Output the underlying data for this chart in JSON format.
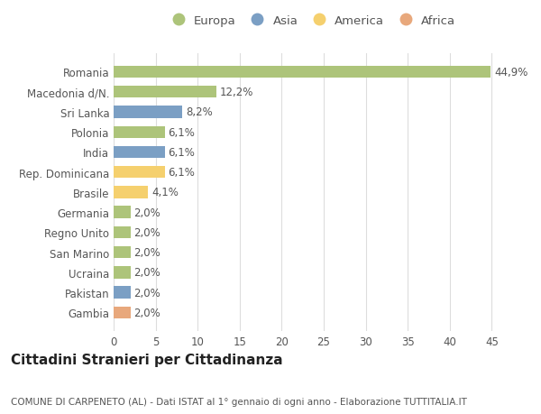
{
  "categories": [
    "Gambia",
    "Pakistan",
    "Ucraina",
    "San Marino",
    "Regno Unito",
    "Germania",
    "Brasile",
    "Rep. Dominicana",
    "India",
    "Polonia",
    "Sri Lanka",
    "Macedonia d/N.",
    "Romania"
  ],
  "values": [
    2.0,
    2.0,
    2.0,
    2.0,
    2.0,
    2.0,
    4.1,
    6.1,
    6.1,
    6.1,
    8.2,
    12.2,
    44.9
  ],
  "colors": [
    "#e8a87c",
    "#7b9fc4",
    "#adc47a",
    "#adc47a",
    "#adc47a",
    "#adc47a",
    "#f5d06e",
    "#f5d06e",
    "#7b9fc4",
    "#adc47a",
    "#7b9fc4",
    "#adc47a",
    "#adc47a"
  ],
  "labels": [
    "2,0%",
    "2,0%",
    "2,0%",
    "2,0%",
    "2,0%",
    "2,0%",
    "4,1%",
    "6,1%",
    "6,1%",
    "6,1%",
    "8,2%",
    "12,2%",
    "44,9%"
  ],
  "legend": [
    {
      "label": "Europa",
      "color": "#adc47a"
    },
    {
      "label": "Asia",
      "color": "#7b9fc4"
    },
    {
      "label": "America",
      "color": "#f5d06e"
    },
    {
      "label": "Africa",
      "color": "#e8a87c"
    }
  ],
  "title": "Cittadini Stranieri per Cittadinanza",
  "subtitle": "COMUNE DI CARPENETO (AL) - Dati ISTAT al 1° gennaio di ogni anno - Elaborazione TUTTITALIA.IT",
  "xlim": [
    0,
    47
  ],
  "xticks": [
    0,
    5,
    10,
    15,
    20,
    25,
    30,
    35,
    40,
    45
  ],
  "background_color": "#ffffff",
  "grid_color": "#dddddd",
  "bar_height": 0.6,
  "label_fontsize": 8.5,
  "title_fontsize": 11,
  "subtitle_fontsize": 7.5,
  "tick_fontsize": 8.5,
  "legend_fontsize": 9.5,
  "text_color": "#555555",
  "title_color": "#222222"
}
